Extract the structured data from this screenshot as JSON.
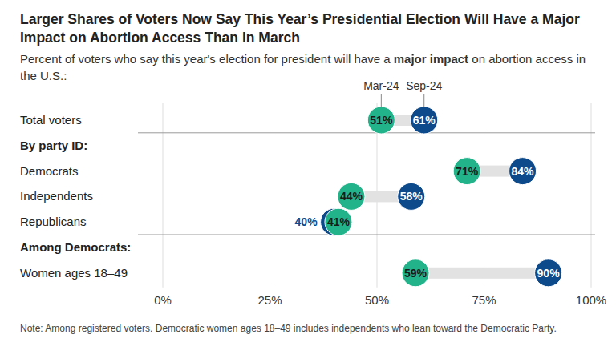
{
  "chart_data": {
    "type": "dumbbell",
    "orientation": "horizontal",
    "title": "Larger Shares of Voters Now Say This Year’s Presidential Election Will Have a Major Impact on Abortion Access Than in March",
    "subtitle": [
      "Percent of voters who say this year's election for president will have a ",
      "major impact",
      " on abortion access in the U.S.:"
    ],
    "note": "Note: Among registered voters. Democratic women ages 18–49 includes independents who lean toward the Democratic Party.",
    "categories": [
      "Total voters",
      "By party ID:",
      "Democrats",
      "Independents",
      "Republicans",
      "Among Democrats:",
      "Women ages 18–49"
    ],
    "series": [
      {
        "name": "Mar-24",
        "color": "#22b38b",
        "values": [
          51,
          null,
          71,
          44,
          41,
          null,
          59
        ],
        "value_labels": [
          "51%",
          null,
          "71%",
          "44%",
          "41%",
          null,
          "59%"
        ]
      },
      {
        "name": "Sep-24",
        "color": "#0d4a8c",
        "values": [
          61,
          null,
          84,
          58,
          40,
          null,
          90
        ],
        "value_labels": [
          "61%",
          null,
          "84%",
          "58%",
          "40%",
          null,
          "90%"
        ]
      }
    ],
    "xlim": [
      0,
      100
    ],
    "xticks": [
      {
        "value": 0,
        "label": "0%"
      },
      {
        "value": 25,
        "label": "25%"
      },
      {
        "value": 50,
        "label": "50%"
      },
      {
        "value": 75,
        "label": "75%"
      },
      {
        "value": 100,
        "label": "100%"
      }
    ],
    "grid": true,
    "data_labels": true
  }
}
